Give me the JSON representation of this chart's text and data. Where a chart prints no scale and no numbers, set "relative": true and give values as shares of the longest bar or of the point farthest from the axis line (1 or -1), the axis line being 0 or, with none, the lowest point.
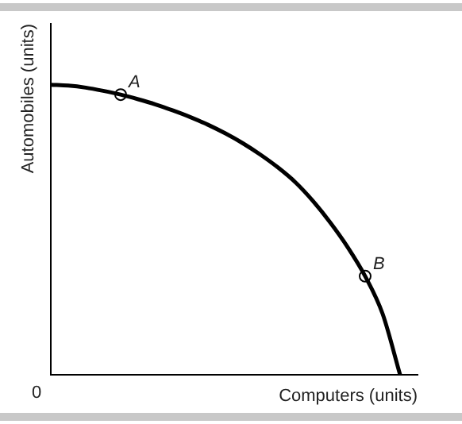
{
  "chart_data": {
    "type": "line",
    "relative": true,
    "xlabel": "Computers (units)",
    "ylabel": "Automobiles (units)",
    "annotations": [
      "0"
    ],
    "grid": false,
    "legend": false,
    "categories": [
      null,
      null,
      null,
      null,
      null,
      null,
      null,
      null,
      null,
      null,
      null,
      null,
      null,
      null,
      null,
      null,
      null,
      null,
      null,
      null,
      null,
      null
    ],
    "series": [
      {
        "color": "#000000",
        "marker": "none",
        "values": [
          1,
          0.997,
          0.99,
          0.979,
          0.966,
          0.95,
          0.932,
          0.911,
          0.888,
          0.862,
          0.832,
          0.798,
          0.759,
          0.715,
          0.664,
          0.6,
          0.525,
          0.44,
          0.34,
          0.21,
          0,
          null
        ]
      },
      {
        "name": "A",
        "color": "#000000",
        "marker": "circle",
        "values": [
          null,
          null,
          null,
          null,
          0.966,
          null,
          null,
          null,
          null,
          null,
          null,
          null,
          null,
          null,
          null,
          null,
          null,
          null,
          null,
          null,
          null,
          null
        ]
      },
      {
        "name": "B",
        "color": "#000000",
        "marker": "circle",
        "values": [
          null,
          null,
          null,
          null,
          null,
          null,
          null,
          null,
          null,
          null,
          null,
          null,
          null,
          null,
          null,
          null,
          null,
          null,
          0.34,
          null,
          null,
          null
        ]
      }
    ]
  }
}
